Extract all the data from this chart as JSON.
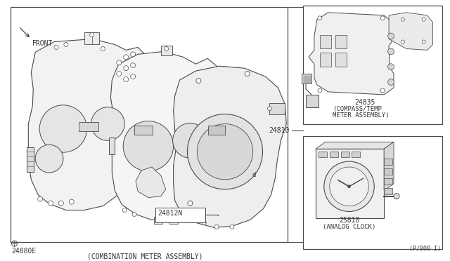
{
  "bg_color": "#ffffff",
  "line_color": "#4a4a4a",
  "text_color": "#333333",
  "labels": {
    "main_part_num": "24880E",
    "main_label": "(COMBINATION METER ASSEMBLY)",
    "sub_part": "24812N",
    "compass_part": "24835",
    "compass_line1": "(COMPASS/TEMP",
    "compass_line2": "METER ASSEMBLY)",
    "connector_label": "24810",
    "clock_part": "25810",
    "clock_label": "(ANALOG CLOCK)",
    "page_ref": "(P/800 I)",
    "front": "FRONT"
  }
}
